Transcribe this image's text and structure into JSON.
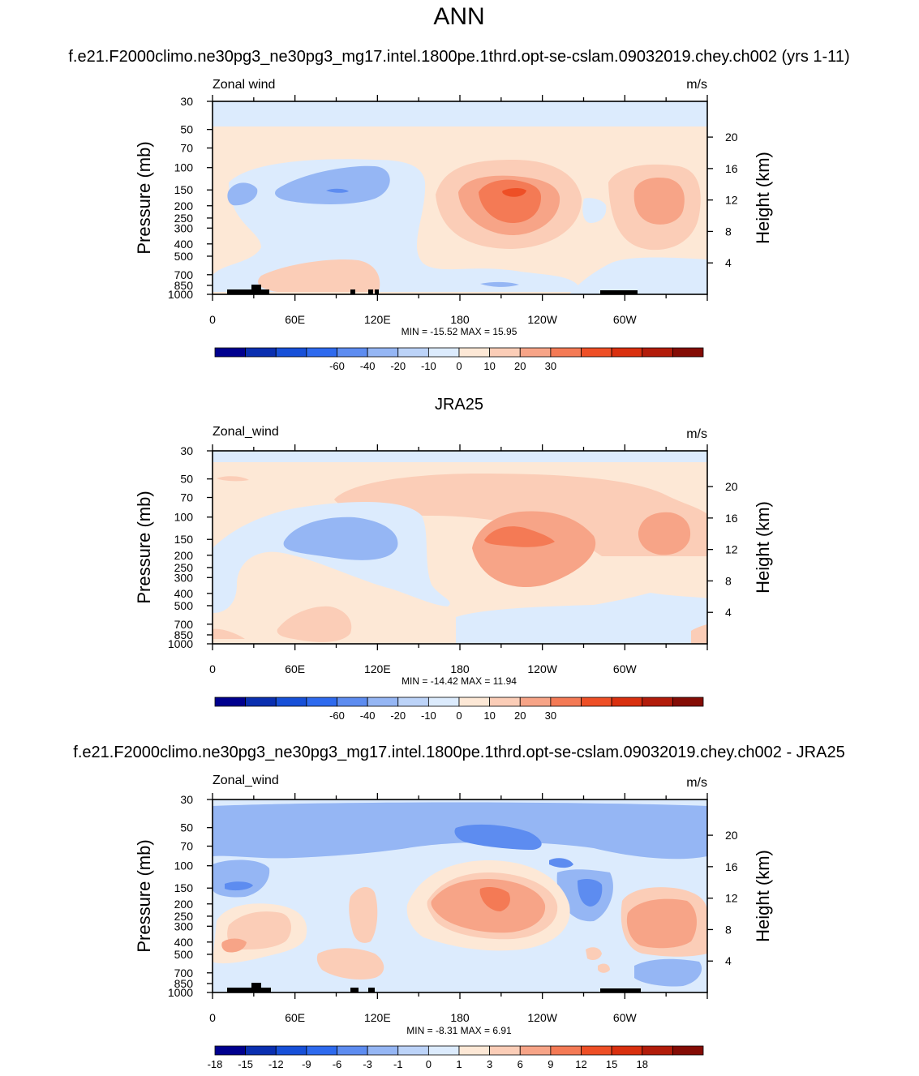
{
  "figure_title": "ANN",
  "chart_data": [
    {
      "type": "heatmap",
      "title": "f.e21.F2000climo.ne30pg3_ne30pg3_mg17.intel.1800pe.1thrd.opt-se-cslam.09032019.chey.ch002 (yrs 1-11)",
      "variable_label": "Zonal wind",
      "units": "m/s",
      "ylabel": "Pressure (mb)",
      "y2label": "Height (km)",
      "x_ticks": [
        "0",
        "60E",
        "120E",
        "180",
        "120W",
        "60W"
      ],
      "y_ticks": [
        "30",
        "50",
        "70",
        "100",
        "150",
        "200",
        "250",
        "300",
        "400",
        "500",
        "700",
        "850",
        "1000"
      ],
      "y2_ticks": [
        "20",
        "16",
        "12",
        "8",
        "4"
      ],
      "stats": "MIN = -15.52  MAX =  15.95",
      "min": -15.52,
      "max": 15.95,
      "colorbar_labels": [
        "-60",
        "-40",
        "-20",
        "-10",
        "0",
        "10",
        "20",
        "30"
      ],
      "colorbar_colors": [
        "#00008e",
        "#0a2fb0",
        "#1750d8",
        "#2e6aee",
        "#5d8cf0",
        "#95b6f4",
        "#bcd3f8",
        "#dcebfd",
        "#fde8d6",
        "#fbcdb7",
        "#f7a487",
        "#f47a55",
        "#ee4f26",
        "#d9300f",
        "#b21c0a",
        "#840c05"
      ]
    },
    {
      "type": "heatmap",
      "title": "JRA25",
      "variable_label": "Zonal_wind",
      "units": "m/s",
      "ylabel": "Pressure (mb)",
      "y2label": "Height (km)",
      "x_ticks": [
        "0",
        "60E",
        "120E",
        "180",
        "120W",
        "60W"
      ],
      "y_ticks": [
        "30",
        "50",
        "70",
        "100",
        "150",
        "200",
        "250",
        "300",
        "400",
        "500",
        "700",
        "850",
        "1000"
      ],
      "y2_ticks": [
        "20",
        "16",
        "12",
        "8",
        "4"
      ],
      "stats": "MIN = -14.42  MAX =  11.94",
      "min": -14.42,
      "max": 11.94,
      "colorbar_labels": [
        "-60",
        "-40",
        "-20",
        "-10",
        "0",
        "10",
        "20",
        "30"
      ],
      "colorbar_colors": [
        "#00008e",
        "#0a2fb0",
        "#1750d8",
        "#2e6aee",
        "#5d8cf0",
        "#95b6f4",
        "#bcd3f8",
        "#dcebfd",
        "#fde8d6",
        "#fbcdb7",
        "#f7a487",
        "#f47a55",
        "#ee4f26",
        "#d9300f",
        "#b21c0a",
        "#840c05"
      ]
    },
    {
      "type": "heatmap",
      "title": "f.e21.F2000climo.ne30pg3_ne30pg3_mg17.intel.1800pe.1thrd.opt-se-cslam.09032019.chey.ch002 - JRA25",
      "variable_label": "Zonal_wind",
      "units": "m/s",
      "ylabel": "Pressure (mb)",
      "y2label": "Height (km)",
      "x_ticks": [
        "0",
        "60E",
        "120E",
        "180",
        "120W",
        "60W"
      ],
      "y_ticks": [
        "30",
        "50",
        "70",
        "100",
        "150",
        "200",
        "250",
        "300",
        "400",
        "500",
        "700",
        "850",
        "1000"
      ],
      "y2_ticks": [
        "20",
        "16",
        "12",
        "8",
        "4"
      ],
      "stats": "MIN =  -8.31  MAX =   6.91",
      "min": -8.31,
      "max": 6.91,
      "colorbar_labels": [
        "-18",
        "-15",
        "-12",
        "-9",
        "-6",
        "-3",
        "-1",
        "0",
        "1",
        "3",
        "6",
        "9",
        "12",
        "15",
        "18"
      ],
      "colorbar_colors": [
        "#00008e",
        "#0a2fb0",
        "#1750d8",
        "#2e6aee",
        "#5d8cf0",
        "#95b6f4",
        "#bcd3f8",
        "#dcebfd",
        "#fde8d6",
        "#fbcdb7",
        "#f7a487",
        "#f47a55",
        "#ee4f26",
        "#d9300f",
        "#b21c0a",
        "#840c05"
      ]
    }
  ]
}
